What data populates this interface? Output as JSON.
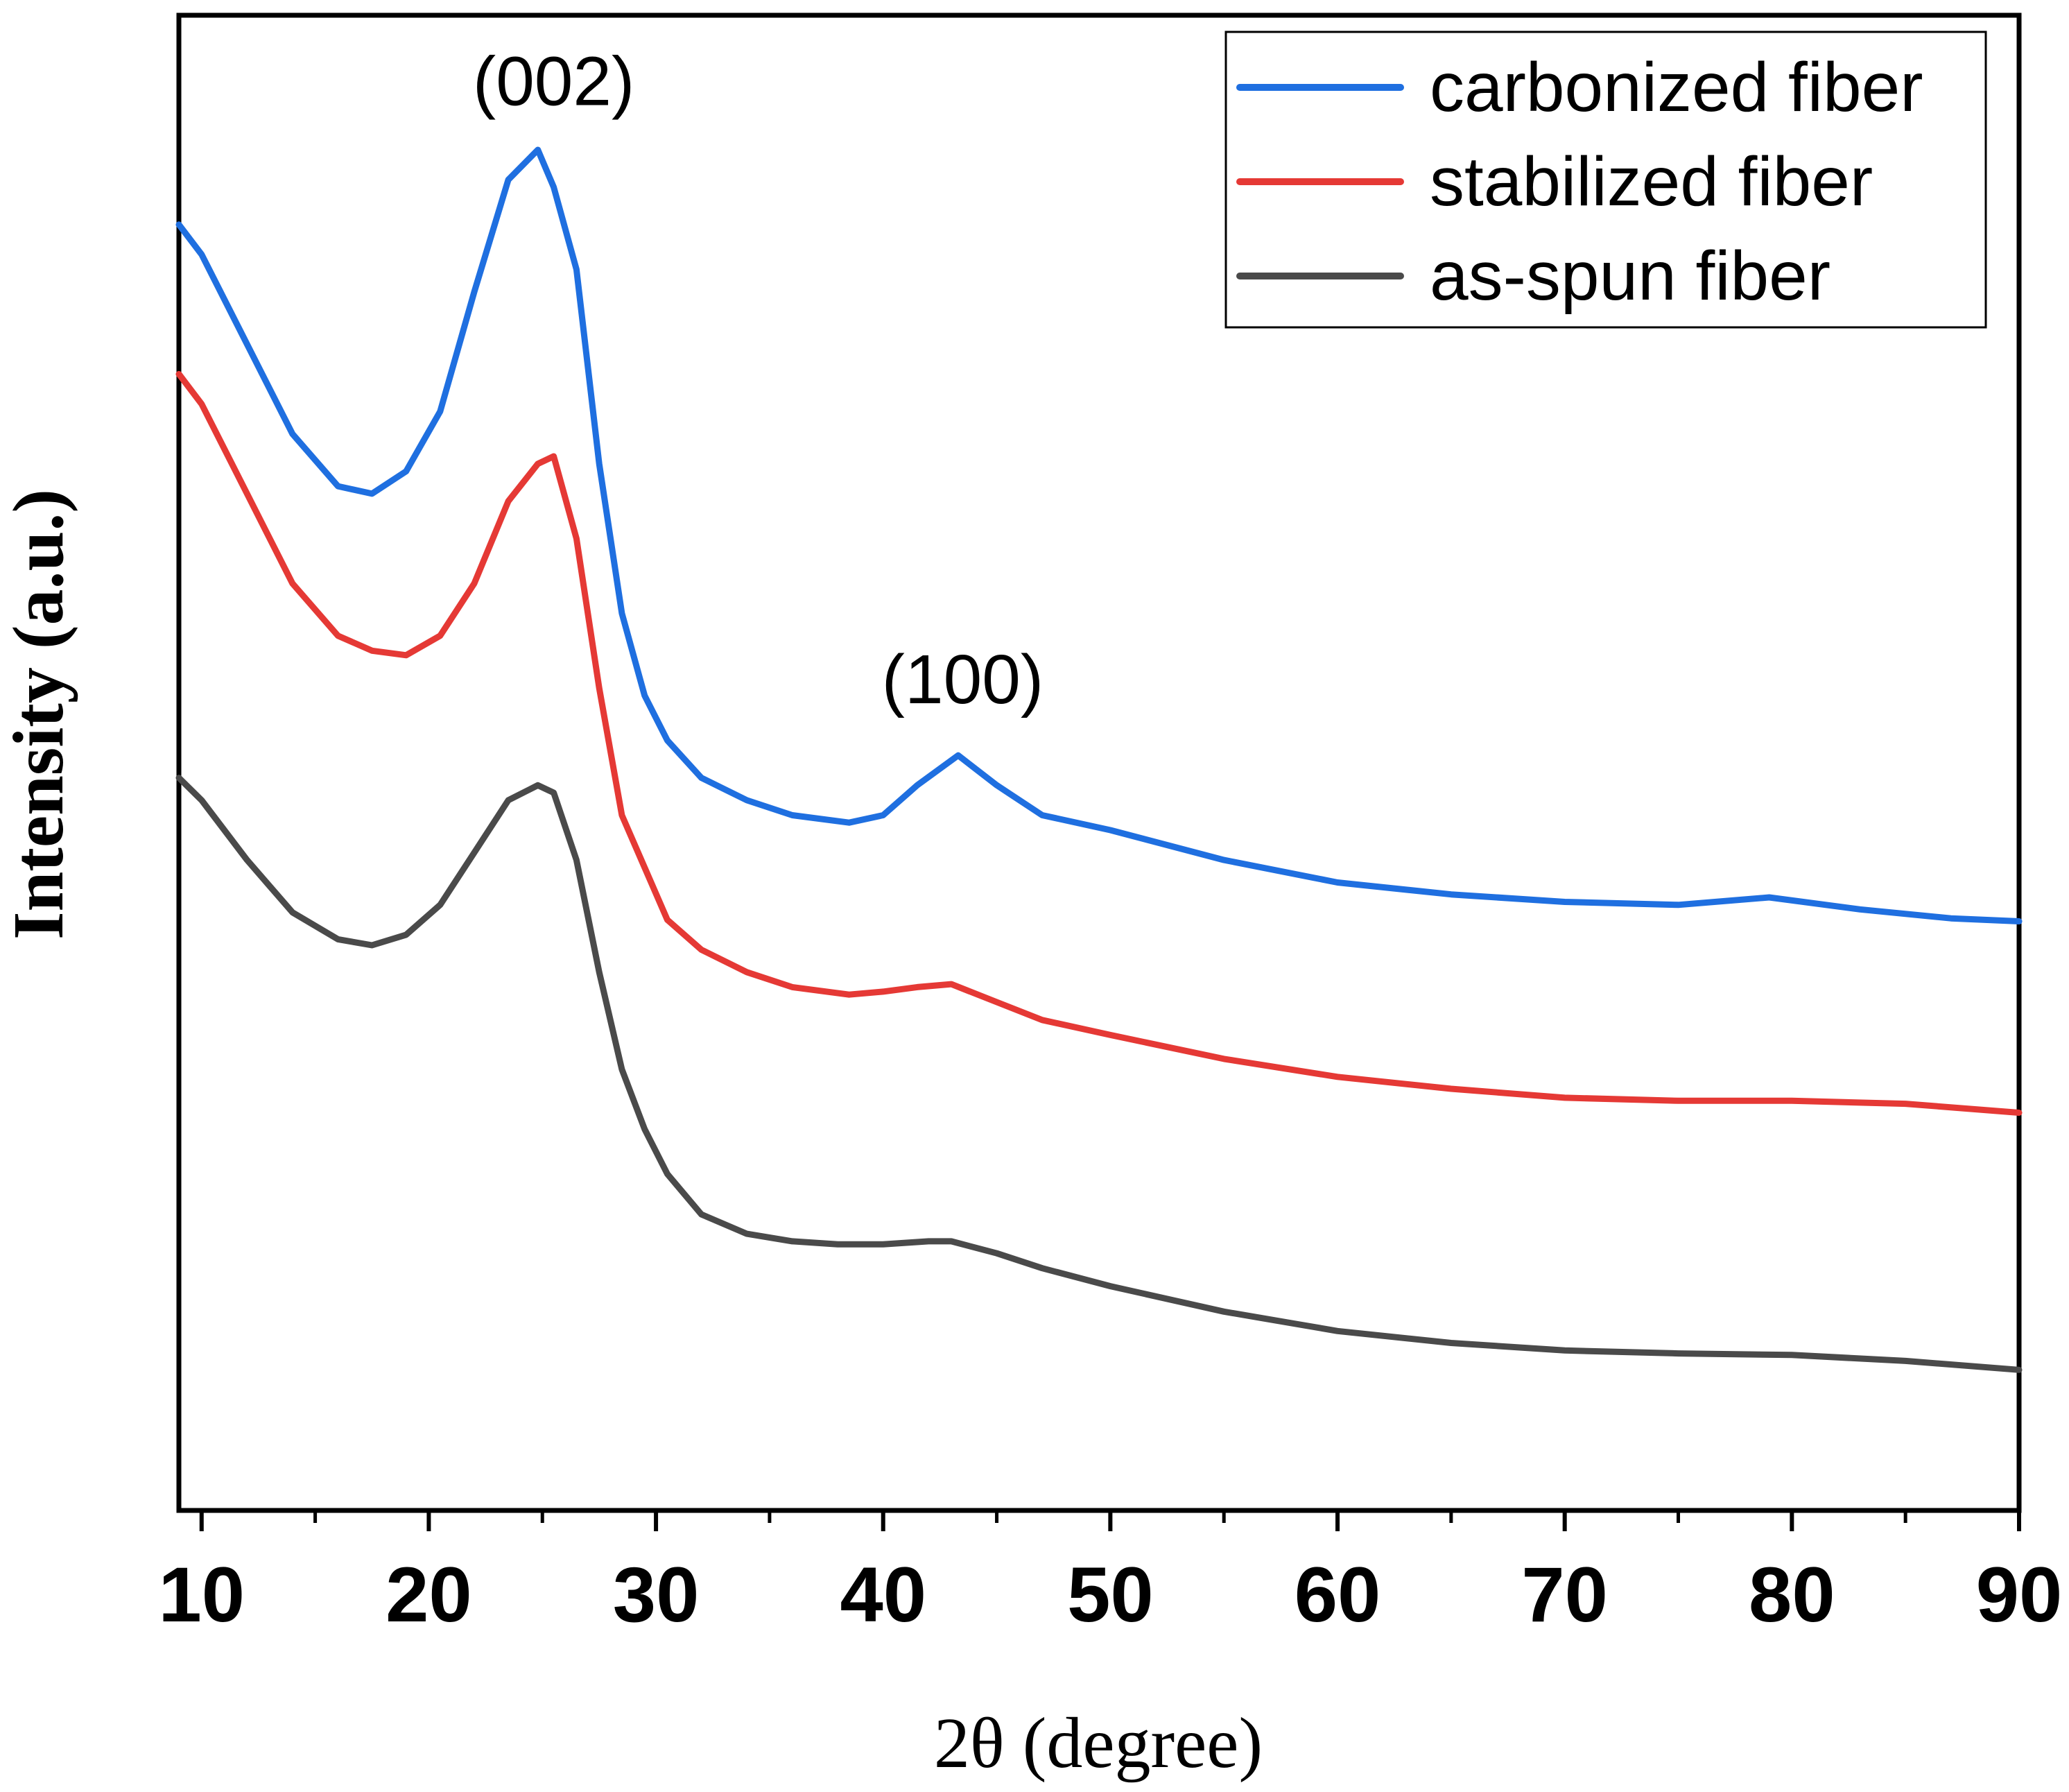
{
  "chart_data": {
    "type": "line",
    "title": "",
    "xlabel": "2θ (degree)",
    "ylabel": "Intensity (a.u.)",
    "xlim": [
      9,
      90
    ],
    "ylim": [
      0,
      10
    ],
    "x_ticks": [
      10,
      20,
      30,
      40,
      50,
      60,
      70,
      80,
      90
    ],
    "y_ticks_shown": false,
    "grid": false,
    "legend_position": "top-right",
    "annotations": [
      {
        "text": "(002)",
        "x": 25.5,
        "y": 9.4
      },
      {
        "text": "(100)",
        "x": 43.5,
        "y": 5.4
      }
    ],
    "series": [
      {
        "name": "carbonized fiber",
        "color": "#1f6fe0",
        "x": [
          9,
          10,
          12,
          14,
          16,
          17.5,
          19,
          20.5,
          22,
          23.5,
          24.8,
          25.5,
          26.5,
          27.5,
          28.5,
          29.5,
          30.5,
          32,
          34,
          36,
          38.5,
          40,
          41.5,
          43.3,
          45,
          47,
          50,
          55,
          60,
          65,
          70,
          75,
          79,
          83,
          87,
          90
        ],
        "y": [
          8.6,
          8.4,
          7.8,
          7.2,
          6.85,
          6.8,
          6.95,
          7.35,
          8.15,
          8.9,
          9.1,
          8.85,
          8.3,
          7.0,
          6.0,
          5.45,
          5.15,
          4.9,
          4.75,
          4.65,
          4.6,
          4.65,
          4.85,
          5.05,
          4.85,
          4.65,
          4.55,
          4.35,
          4.2,
          4.12,
          4.07,
          4.05,
          4.1,
          4.02,
          3.96,
          3.94
        ]
      },
      {
        "name": "stabilized fiber",
        "color": "#e53935",
        "x": [
          9,
          10,
          12,
          14,
          16,
          17.5,
          19,
          20.5,
          22,
          23.5,
          24.8,
          25.5,
          26.5,
          27.5,
          28.5,
          29.5,
          30.5,
          32,
          34,
          36,
          38.5,
          40,
          41.5,
          43,
          45,
          47,
          50,
          55,
          60,
          65,
          70,
          75,
          80,
          85,
          90
        ],
        "y": [
          7.6,
          7.4,
          6.8,
          6.2,
          5.85,
          5.75,
          5.72,
          5.85,
          6.2,
          6.75,
          7.0,
          7.05,
          6.5,
          5.5,
          4.65,
          4.3,
          3.95,
          3.75,
          3.6,
          3.5,
          3.45,
          3.47,
          3.5,
          3.52,
          3.4,
          3.28,
          3.18,
          3.02,
          2.9,
          2.82,
          2.76,
          2.74,
          2.74,
          2.72,
          2.66
        ]
      },
      {
        "name": "as-spun fiber",
        "color": "#4a4a4a",
        "x": [
          9,
          10,
          12,
          14,
          16,
          17.5,
          19,
          20.5,
          22,
          23.5,
          24.8,
          25.5,
          26.5,
          27.5,
          28.5,
          29.5,
          30.5,
          32,
          34,
          36,
          38,
          40,
          42,
          43,
          45,
          47,
          50,
          55,
          60,
          65,
          70,
          75,
          80,
          85,
          90
        ],
        "y": [
          4.9,
          4.75,
          4.35,
          4.0,
          3.82,
          3.78,
          3.85,
          4.05,
          4.4,
          4.75,
          4.85,
          4.8,
          4.35,
          3.6,
          2.95,
          2.55,
          2.25,
          1.98,
          1.85,
          1.8,
          1.78,
          1.78,
          1.8,
          1.8,
          1.72,
          1.62,
          1.5,
          1.33,
          1.2,
          1.12,
          1.07,
          1.05,
          1.04,
          1.0,
          0.94
        ]
      }
    ]
  }
}
